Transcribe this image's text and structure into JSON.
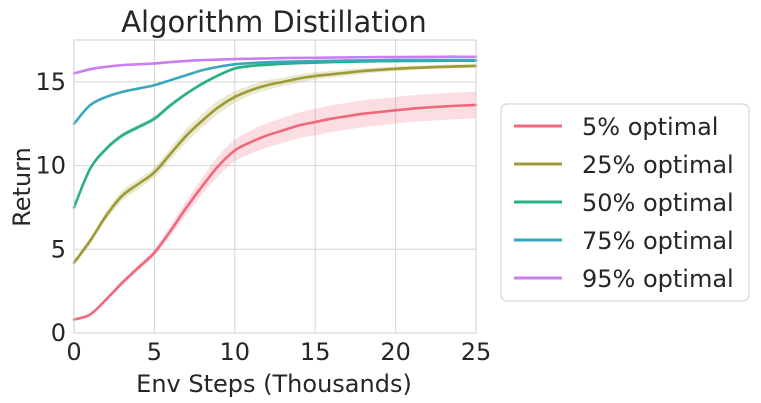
{
  "chart_data": {
    "type": "line",
    "title": "Algorithm Distillation",
    "xlabel": "Env Steps (Thousands)",
    "ylabel": "Return",
    "xlim": [
      0,
      25
    ],
    "ylim": [
      0,
      17.5
    ],
    "xticks": [
      0,
      5,
      10,
      15,
      20,
      25
    ],
    "yticks": [
      0,
      5,
      10,
      15
    ],
    "grid": true,
    "legend_position": "right",
    "x": [
      0,
      1,
      2,
      3,
      4,
      5,
      6,
      7,
      8,
      9,
      10,
      11,
      12,
      13,
      14,
      15,
      16,
      17,
      18,
      19,
      20,
      21,
      22,
      23,
      24,
      25
    ],
    "series": [
      {
        "name": "5% optimal",
        "color": "#f0687c",
        "values": [
          0.8,
          1.1,
          2.0,
          3.0,
          3.9,
          4.8,
          6.1,
          7.5,
          8.8,
          10.0,
          10.9,
          11.4,
          11.8,
          12.1,
          12.4,
          12.6,
          12.8,
          12.95,
          13.1,
          13.2,
          13.3,
          13.4,
          13.47,
          13.53,
          13.58,
          13.62
        ],
        "band": [
          0.08,
          0.1,
          0.12,
          0.15,
          0.18,
          0.2,
          0.3,
          0.4,
          0.5,
          0.6,
          0.65,
          0.7,
          0.72,
          0.75,
          0.77,
          0.8,
          0.8,
          0.8,
          0.8,
          0.8,
          0.8,
          0.8,
          0.8,
          0.8,
          0.8,
          0.8
        ]
      },
      {
        "name": "25% optimal",
        "color": "#9e9a34",
        "values": [
          4.2,
          5.5,
          7.0,
          8.2,
          8.9,
          9.6,
          10.7,
          11.8,
          12.7,
          13.5,
          14.1,
          14.5,
          14.8,
          15.0,
          15.2,
          15.35,
          15.45,
          15.55,
          15.65,
          15.72,
          15.78,
          15.83,
          15.87,
          15.9,
          15.93,
          15.95
        ],
        "band": [
          0.15,
          0.2,
          0.25,
          0.3,
          0.3,
          0.3,
          0.35,
          0.4,
          0.4,
          0.4,
          0.35,
          0.3,
          0.3,
          0.25,
          0.25,
          0.22,
          0.2,
          0.2,
          0.18,
          0.15,
          0.15,
          0.15,
          0.12,
          0.12,
          0.12,
          0.12
        ]
      },
      {
        "name": "50% optimal",
        "color": "#2ab07f",
        "values": [
          7.5,
          9.8,
          11.0,
          11.8,
          12.3,
          12.8,
          13.6,
          14.3,
          14.9,
          15.4,
          15.8,
          15.95,
          16.02,
          16.08,
          16.12,
          16.15,
          16.18,
          16.2,
          16.22,
          16.23,
          16.24,
          16.25,
          16.25,
          16.26,
          16.26,
          16.26
        ],
        "band": [
          0.1,
          0.12,
          0.15,
          0.15,
          0.15,
          0.15,
          0.15,
          0.12,
          0.12,
          0.1,
          0.1,
          0.08,
          0.08,
          0.07,
          0.07,
          0.07,
          0.06,
          0.06,
          0.06,
          0.06,
          0.06,
          0.06,
          0.06,
          0.06,
          0.06,
          0.06
        ]
      },
      {
        "name": "75% optimal",
        "color": "#39a7bf",
        "values": [
          12.5,
          13.6,
          14.1,
          14.4,
          14.6,
          14.8,
          15.1,
          15.4,
          15.7,
          15.9,
          16.05,
          16.12,
          16.17,
          16.2,
          16.22,
          16.24,
          16.26,
          16.27,
          16.28,
          16.29,
          16.3,
          16.3,
          16.3,
          16.3,
          16.3,
          16.3
        ],
        "band": [
          0.08,
          0.08,
          0.08,
          0.08,
          0.08,
          0.08,
          0.07,
          0.07,
          0.06,
          0.06,
          0.05,
          0.05,
          0.05,
          0.05,
          0.05,
          0.05,
          0.05,
          0.05,
          0.05,
          0.05,
          0.05,
          0.05,
          0.05,
          0.05,
          0.05,
          0.05
        ]
      },
      {
        "name": "95% optimal",
        "color": "#c97ff2",
        "values": [
          15.5,
          15.75,
          15.9,
          16.0,
          16.05,
          16.1,
          16.18,
          16.25,
          16.3,
          16.33,
          16.36,
          16.38,
          16.4,
          16.42,
          16.43,
          16.44,
          16.45,
          16.46,
          16.47,
          16.48,
          16.48,
          16.49,
          16.49,
          16.5,
          16.5,
          16.5
        ],
        "band": [
          0.06,
          0.06,
          0.06,
          0.06,
          0.06,
          0.06,
          0.05,
          0.05,
          0.05,
          0.05,
          0.05,
          0.05,
          0.05,
          0.05,
          0.05,
          0.05,
          0.05,
          0.05,
          0.05,
          0.05,
          0.05,
          0.05,
          0.05,
          0.05,
          0.05,
          0.05
        ]
      }
    ]
  }
}
